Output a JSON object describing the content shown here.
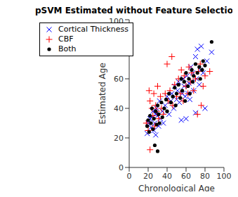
{
  "chart_data": {
    "type": "scatter",
    "title": "pSVM Estimated without Feature Selection",
    "x_label": "Chronological Age",
    "y_label": "Estimated Age",
    "xlim": [
      0,
      100
    ],
    "ylim": [
      0,
      100
    ],
    "xticks": [
      0,
      20,
      40,
      60,
      80,
      100
    ],
    "yticks": [
      0,
      20,
      40,
      60,
      80,
      100
    ],
    "grid": false,
    "legend": "upper left",
    "series": [
      {
        "name": "Cortical Thickness",
        "color": "#0000ff",
        "marker": "x",
        "x": [
          19,
          20,
          22,
          23,
          24,
          25,
          26,
          27,
          28,
          28,
          29,
          30,
          31,
          32,
          33,
          35,
          36,
          38,
          40,
          42,
          44,
          45,
          47,
          48,
          50,
          51,
          52,
          53,
          55,
          56,
          57,
          58,
          59,
          60,
          61,
          62,
          63,
          64,
          65,
          66,
          67,
          68,
          70,
          70,
          71,
          72,
          74,
          75,
          76,
          78,
          80,
          82,
          87
        ],
        "values": [
          23,
          30,
          33,
          27,
          34,
          38,
          25,
          30,
          36,
          22,
          40,
          35,
          28,
          45,
          33,
          38,
          30,
          42,
          48,
          36,
          45,
          50,
          40,
          55,
          46,
          52,
          58,
          44,
          32,
          50,
          60,
          55,
          48,
          33,
          62,
          50,
          57,
          46,
          68,
          58,
          64,
          52,
          37,
          75,
          60,
          80,
          56,
          66,
          82,
          64,
          40,
          72,
          78
        ]
      },
      {
        "name": "CBF",
        "color": "#ff0000",
        "marker": "plus",
        "x": [
          18,
          20,
          21,
          22,
          22,
          24,
          25,
          26,
          27,
          28,
          29,
          30,
          31,
          33,
          34,
          36,
          38,
          40,
          41,
          43,
          45,
          46,
          48,
          50,
          52,
          54,
          55,
          57,
          58,
          60,
          62,
          63,
          65,
          66,
          68,
          70,
          72,
          73,
          75,
          76,
          78,
          80,
          85
        ],
        "values": [
          30,
          25,
          52,
          12,
          45,
          40,
          35,
          50,
          28,
          42,
          38,
          55,
          33,
          48,
          40,
          36,
          50,
          70,
          45,
          52,
          75,
          42,
          56,
          48,
          60,
          50,
          66,
          45,
          62,
          55,
          50,
          68,
          58,
          64,
          52,
          60,
          36,
          65,
          70,
          42,
          55,
          62,
          65
        ]
      },
      {
        "name": "Both",
        "color": "#000000",
        "marker": "point",
        "x": [
          19,
          20,
          21,
          22,
          23,
          24,
          25,
          26,
          27,
          28,
          29,
          30,
          30,
          31,
          32,
          34,
          35,
          37,
          39,
          40,
          42,
          44,
          46,
          48,
          49,
          50,
          52,
          54,
          55,
          56,
          58,
          59,
          60,
          62,
          63,
          64,
          66,
          67,
          68,
          70,
          72,
          74,
          75,
          77,
          78,
          80,
          87
        ],
        "values": [
          28,
          32,
          24,
          35,
          30,
          40,
          26,
          33,
          15,
          38,
          29,
          11,
          42,
          36,
          30,
          44,
          34,
          40,
          46,
          38,
          50,
          44,
          48,
          54,
          42,
          50,
          56,
          47,
          60,
          52,
          58,
          45,
          64,
          55,
          60,
          50,
          66,
          58,
          62,
          70,
          64,
          68,
          60,
          66,
          72,
          69,
          85
        ]
      }
    ]
  }
}
